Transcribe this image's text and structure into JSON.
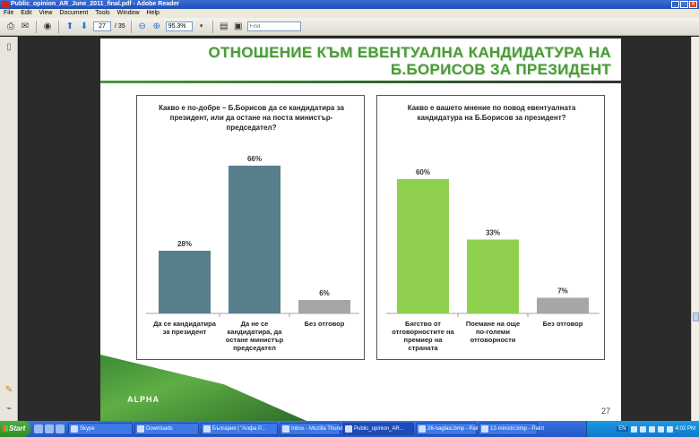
{
  "window": {
    "title": "Public_opinion_AR_June_2011_final.pdf - Adobe Reader"
  },
  "menu": [
    "File",
    "Edit",
    "View",
    "Document",
    "Tools",
    "Window",
    "Help"
  ],
  "toolbar": {
    "page_current": "27",
    "page_total": "/ 35",
    "zoom": "95.3%",
    "find_placeholder": "Find"
  },
  "slide": {
    "title_line1": "ОТНОШЕНИЕ КЪМ ЕВЕНТУАЛНА КАНДИДАТУРА НА",
    "title_line2": "Б.БОРИСОВ ЗА ПРЕЗИДЕНТ",
    "logo": "ALPHA",
    "page_number": "27"
  },
  "chart_data": [
    {
      "type": "bar",
      "title": "Какво е по-добре – Б.Борисов да се кандидатира за президент, или да остане на поста министър-председател?",
      "categories": [
        "Да се кандидатира за президент",
        "Да не се кандидатира, да остане министър председател",
        "Без отговор"
      ],
      "values": [
        28,
        66,
        6
      ],
      "value_labels": [
        "28%",
        "66%",
        "6%"
      ],
      "colors": [
        "#587f8c",
        "#587f8c",
        "#a6a6a6"
      ],
      "ylim": [
        0,
        70
      ]
    },
    {
      "type": "bar",
      "title": "Какво е вашето мнение по повод евентуалната кандидатура на Б.Борисов за президент?",
      "categories": [
        "Бягство от отговорностите на премиер на страната",
        "Поемане на още по-големи отговорности",
        "Без отговор"
      ],
      "values": [
        60,
        33,
        7
      ],
      "value_labels": [
        "60%",
        "33%",
        "7%"
      ],
      "colors": [
        "#8fd14f",
        "#8fd14f",
        "#a6a6a6"
      ],
      "ylim": [
        0,
        70
      ]
    }
  ],
  "taskbar": {
    "start": "Start",
    "tasks": [
      "Skype",
      "Downloads",
      "България | \"Алфа Р...",
      "Inbox - Mozilla Thund...",
      "Public_opinion_AR...",
      "26-naglasi.bmp - Paint",
      "12-ministri.bmp - Paint"
    ],
    "language": "EN",
    "clock": "4:02 PM"
  }
}
